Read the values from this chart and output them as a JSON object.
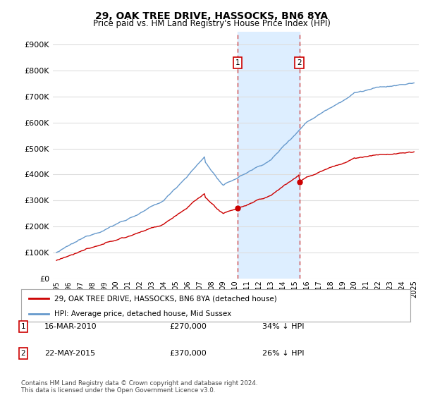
{
  "title": "29, OAK TREE DRIVE, HASSOCKS, BN6 8YA",
  "subtitle": "Price paid vs. HM Land Registry's House Price Index (HPI)",
  "ytick_values": [
    0,
    100000,
    200000,
    300000,
    400000,
    500000,
    600000,
    700000,
    800000,
    900000
  ],
  "ylim": [
    0,
    950000
  ],
  "hpi_color": "#6699cc",
  "price_color": "#cc0000",
  "marker1_date": 2010.21,
  "marker2_date": 2015.38,
  "marker1_price": 270000,
  "marker2_price": 370000,
  "marker1_label": "16-MAR-2010",
  "marker2_label": "22-MAY-2015",
  "marker1_text": "34% ↓ HPI",
  "marker2_text": "26% ↓ HPI",
  "legend_label1": "29, OAK TREE DRIVE, HASSOCKS, BN6 8YA (detached house)",
  "legend_label2": "HPI: Average price, detached house, Mid Sussex",
  "footer": "Contains HM Land Registry data © Crown copyright and database right 2024.\nThis data is licensed under the Open Government Licence v3.0.",
  "background_color": "#ffffff",
  "grid_color": "#dddddd",
  "vspan_color": "#ddeeff",
  "vline_color": "#cc4444"
}
